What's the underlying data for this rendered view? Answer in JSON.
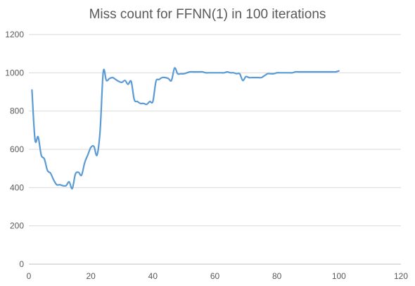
{
  "chart_data": {
    "type": "line",
    "title": "Miss count for FFNN(1) in 100 iterations",
    "xlabel": "",
    "ylabel": "",
    "xlim": [
      0,
      120
    ],
    "ylim": [
      0,
      1200
    ],
    "x_ticks": [
      "0",
      "20",
      "40",
      "60",
      "80",
      "100",
      "120"
    ],
    "y_ticks": [
      "0",
      "200",
      "400",
      "600",
      "800",
      "1000",
      "1200"
    ],
    "grid": "horizontal",
    "legend": "none",
    "series": [
      {
        "color": "#5b9bd5",
        "x": [
          1,
          2,
          3,
          4,
          5,
          6,
          7,
          8,
          9,
          10,
          11,
          12,
          13,
          14,
          15,
          16,
          17,
          18,
          19,
          20,
          21,
          22,
          23,
          24,
          25,
          26,
          27,
          28,
          29,
          30,
          31,
          32,
          33,
          34,
          35,
          36,
          37,
          38,
          39,
          40,
          41,
          42,
          43,
          44,
          45,
          46,
          47,
          48,
          49,
          50,
          51,
          52,
          53,
          54,
          55,
          56,
          57,
          58,
          59,
          60,
          61,
          62,
          63,
          64,
          65,
          66,
          67,
          68,
          69,
          70,
          71,
          72,
          73,
          74,
          75,
          76,
          77,
          78,
          79,
          80,
          81,
          82,
          83,
          84,
          85,
          86,
          87,
          88,
          89,
          90,
          91,
          92,
          93,
          94,
          95,
          96,
          97,
          98,
          99,
          100
        ],
        "values": [
          910,
          650,
          665,
          570,
          550,
          490,
          475,
          440,
          415,
          415,
          410,
          410,
          430,
          395,
          470,
          480,
          465,
          530,
          570,
          610,
          615,
          570,
          700,
          1005,
          960,
          970,
          975,
          965,
          955,
          950,
          960,
          940,
          955,
          860,
          850,
          840,
          840,
          835,
          850,
          850,
          955,
          965,
          975,
          975,
          970,
          960,
          1025,
          995,
          995,
          995,
          1000,
          1005,
          1005,
          1005,
          1005,
          1005,
          1000,
          1000,
          1000,
          1000,
          1000,
          1000,
          1000,
          1005,
          1000,
          1000,
          995,
          995,
          960,
          980,
          975,
          975,
          975,
          975,
          975,
          985,
          995,
          995,
          995,
          1000,
          1000,
          1000,
          1000,
          1000,
          1000,
          1005,
          1005,
          1005,
          1005,
          1005,
          1005,
          1005,
          1005,
          1005,
          1005,
          1005,
          1005,
          1005,
          1005,
          1010
        ]
      }
    ]
  }
}
